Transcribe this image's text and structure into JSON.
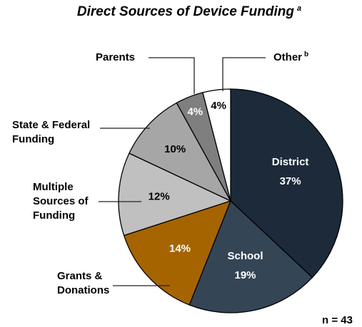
{
  "chart_data": {
    "type": "pie",
    "title": "Direct Sources of Device Funding",
    "title_superscript": "a",
    "note": "n = 43",
    "slices": [
      {
        "label": "District",
        "value": 37,
        "value_label": "37%",
        "color": "#1c2a3a",
        "text_color": "#ffffff"
      },
      {
        "label": "School",
        "value": 19,
        "value_label": "19%",
        "color": "#344556",
        "text_color": "#ffffff"
      },
      {
        "label": "Grants & Donations",
        "label_lines": [
          "Grants &",
          "Donations"
        ],
        "value": 14,
        "value_label": "14%",
        "color": "#a66400",
        "text_color": "#ffffff"
      },
      {
        "label": "Multiple Sources of Funding",
        "label_lines": [
          "Multiple",
          "Sources of",
          "Funding"
        ],
        "value": 12,
        "value_label": "12%",
        "color": "#c0c0c0",
        "text_color": "#000000"
      },
      {
        "label": "State & Federal Funding",
        "label_lines": [
          "State & Federal",
          "Funding"
        ],
        "value": 10,
        "value_label": "10%",
        "color": "#a6a6a6",
        "text_color": "#000000"
      },
      {
        "label": "Parents",
        "value": 4,
        "value_label": "4%",
        "color": "#7f7f7f",
        "text_color": "#ffffff"
      },
      {
        "label": "Other",
        "label_superscript": "b",
        "value": 4,
        "value_label": "4%",
        "color": "#ffffff",
        "text_color": "#000000"
      }
    ]
  }
}
